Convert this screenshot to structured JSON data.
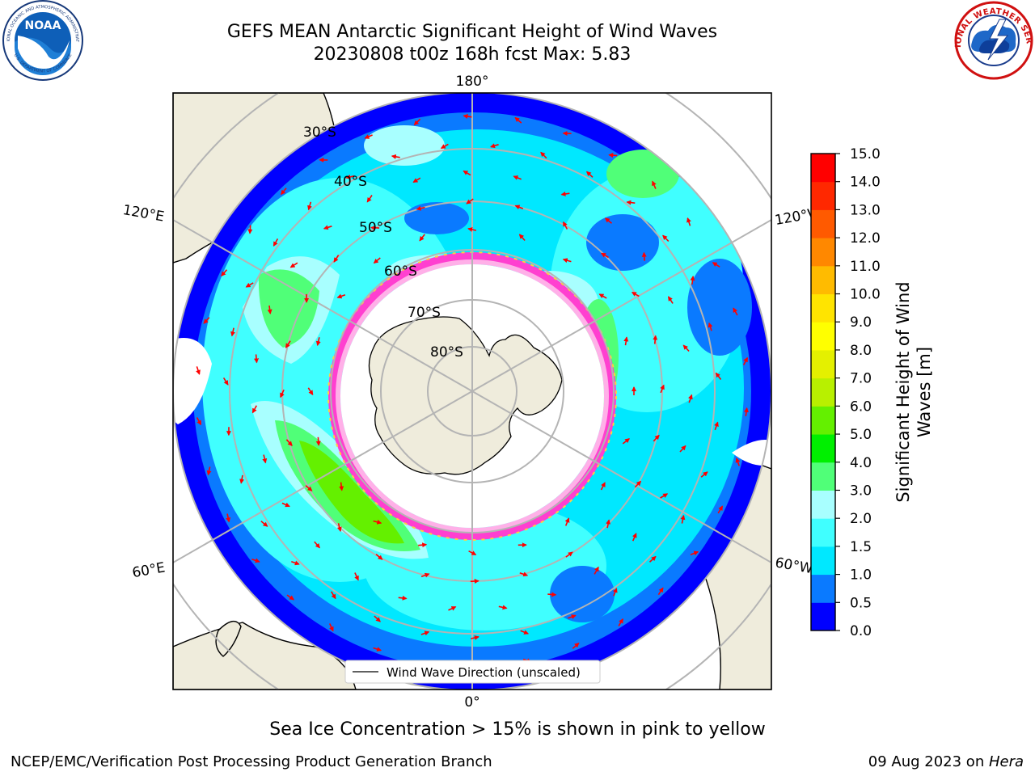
{
  "header": {
    "title_line1": "GEFS MEAN Antarctic Significant Height of Wind Waves",
    "title_line2": "20230808 t00z 168h fcst   Max: 5.83",
    "noaa_logo_text": "NOAA",
    "noaa_ring_top": "NATIONAL OCEANIC AND ATMOSPHERIC ADMINISTRATION",
    "noaa_ring_bottom": "U.S. DEPARTMENT OF COMMERCE",
    "nws_ring_text": "NATIONAL WEATHER SERVICE"
  },
  "map": {
    "projection": "south-polar stereographic",
    "lon_labels": [
      "180°",
      "120°E",
      "120°W",
      "60°E",
      "60°W",
      "0°"
    ],
    "lat_labels": [
      "30°S",
      "40°S",
      "50°S",
      "60°S",
      "70°S",
      "80°S"
    ],
    "legend_label": "Wind Wave Direction (unscaled)",
    "arrow_color": "#ff0000",
    "land_color": "#efecdc",
    "ice_colors": [
      "#ff3fd0",
      "#ffb0e8",
      "#ffd040"
    ]
  },
  "colorbar": {
    "label": "Significant Height of Wind Waves [m]",
    "label_line1": "Significant Height of Wind",
    "label_line2": "Waves [m]",
    "levels": [
      "0.0",
      "0.5",
      "1.0",
      "1.5",
      "2.0",
      "3.0",
      "4.0",
      "5.0",
      "6.0",
      "7.0",
      "8.0",
      "9.0",
      "10.0",
      "11.0",
      "12.0",
      "13.0",
      "14.0",
      "15.0"
    ],
    "colors": [
      "#0000ff",
      "#0a7aff",
      "#00e8ff",
      "#40ffff",
      "#a8ffff",
      "#50ff78",
      "#00f000",
      "#64f000",
      "#b8f000",
      "#e4f000",
      "#ffff00",
      "#ffe400",
      "#ffbb00",
      "#ff8800",
      "#ff5a00",
      "#ff2800",
      "#ff0000"
    ]
  },
  "caption": "Sea Ice Concentration > 15% is shown in pink to yellow",
  "footer": {
    "left": "NCEP/EMC/Verification Post Processing Product Generation Branch",
    "right_prefix": "09 Aug 2023 on ",
    "right_host": "Hera"
  }
}
